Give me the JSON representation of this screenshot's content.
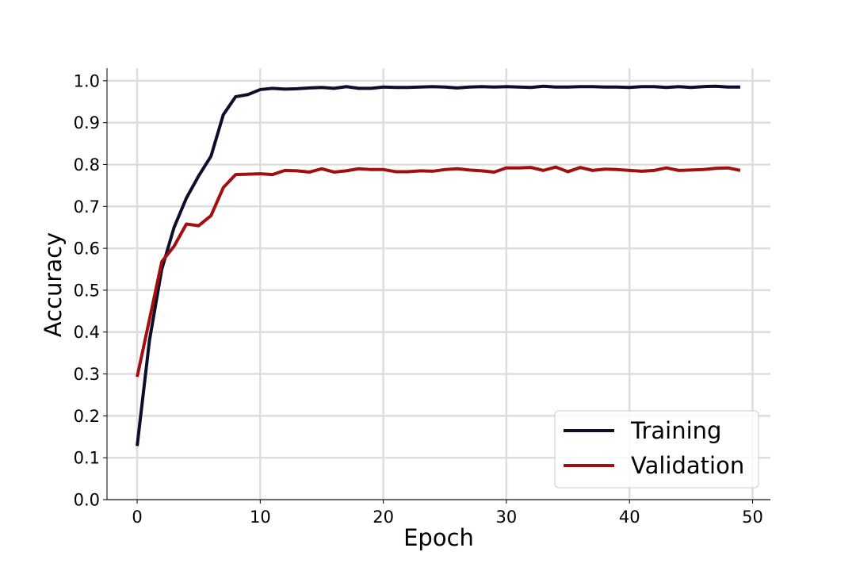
{
  "chart_data": {
    "type": "line",
    "xlabel": "Epoch",
    "ylabel": "Accuracy",
    "xlim": [
      -2.45,
      51.45
    ],
    "ylim": [
      0.0,
      1.03
    ],
    "xticks": [
      0,
      10,
      20,
      30,
      40,
      50
    ],
    "xtick_labels": [
      "0",
      "10",
      "20",
      "30",
      "40",
      "50"
    ],
    "yticks": [
      0.0,
      0.1,
      0.2,
      0.3,
      0.4,
      0.5,
      0.6,
      0.7,
      0.8,
      0.9,
      1.0
    ],
    "ytick_labels": [
      "0.0",
      "0.1",
      "0.2",
      "0.3",
      "0.4",
      "0.5",
      "0.6",
      "0.7",
      "0.8",
      "0.9",
      "1.0"
    ],
    "grid": true,
    "legend_position": "bottom-right",
    "x": [
      0,
      1,
      2,
      3,
      4,
      5,
      6,
      7,
      8,
      9,
      10,
      11,
      12,
      13,
      14,
      15,
      16,
      17,
      18,
      19,
      20,
      21,
      22,
      23,
      24,
      25,
      26,
      27,
      28,
      29,
      30,
      31,
      32,
      33,
      34,
      35,
      36,
      37,
      38,
      39,
      40,
      41,
      42,
      43,
      44,
      45,
      46,
      47,
      48,
      49
    ],
    "series": [
      {
        "name": "Training",
        "color": "#0b0f2a",
        "values": [
          0.128,
          0.38,
          0.55,
          0.65,
          0.72,
          0.773,
          0.82,
          0.919,
          0.962,
          0.967,
          0.979,
          0.982,
          0.98,
          0.981,
          0.983,
          0.984,
          0.982,
          0.986,
          0.982,
          0.982,
          0.985,
          0.984,
          0.984,
          0.985,
          0.986,
          0.985,
          0.983,
          0.985,
          0.986,
          0.985,
          0.986,
          0.985,
          0.984,
          0.987,
          0.985,
          0.985,
          0.986,
          0.986,
          0.985,
          0.985,
          0.984,
          0.986,
          0.986,
          0.984,
          0.986,
          0.984,
          0.986,
          0.987,
          0.985,
          0.985
        ]
      },
      {
        "name": "Validation",
        "color": "#a10f0f",
        "values": [
          0.293,
          0.43,
          0.568,
          0.605,
          0.658,
          0.654,
          0.678,
          0.745,
          0.776,
          0.777,
          0.778,
          0.776,
          0.786,
          0.785,
          0.782,
          0.79,
          0.782,
          0.785,
          0.79,
          0.788,
          0.788,
          0.783,
          0.783,
          0.785,
          0.784,
          0.788,
          0.79,
          0.787,
          0.785,
          0.782,
          0.792,
          0.792,
          0.793,
          0.786,
          0.794,
          0.783,
          0.793,
          0.786,
          0.789,
          0.788,
          0.786,
          0.784,
          0.786,
          0.792,
          0.786,
          0.787,
          0.788,
          0.791,
          0.792,
          0.786
        ]
      }
    ]
  }
}
